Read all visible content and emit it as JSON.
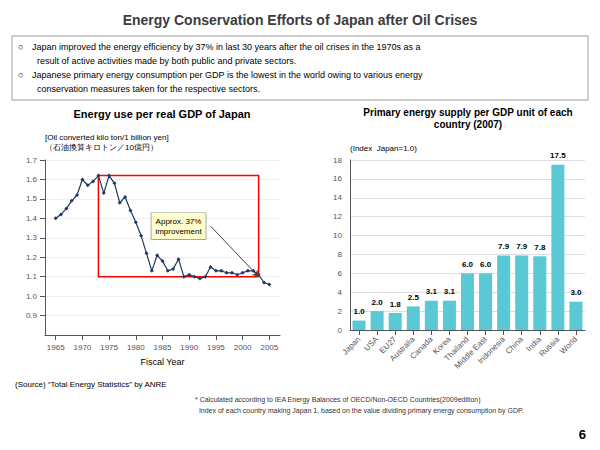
{
  "title": "Energy Conservation Efforts of Japan after Oil Crises",
  "bullet": "○",
  "bullets": [
    [
      "Japan improved the energy efficiency by 37% in last 30 years after the oil crises in the 1970s as a",
      "  result of active activities made by both public and private sectors."
    ],
    [
      "Japanese primary energy consumption per GDP is the lowest in the world owing to various energy",
      "  conservation measures taken for the respective sectors."
    ]
  ],
  "page": "6",
  "chart_data": [
    {
      "type": "line",
      "title": "Energy use per real GDP of Japan",
      "x_label": "Fiscal Year",
      "y_label": "[Oil converted kilo ton/1 billion yen]\n（石油換算キロトン／10億円）",
      "source": "(Source) “Total Energy Statistics” by ANRE",
      "x": [
        1965,
        1966,
        1967,
        1968,
        1969,
        1970,
        1971,
        1972,
        1973,
        1974,
        1975,
        1976,
        1977,
        1978,
        1979,
        1980,
        1981,
        1982,
        1983,
        1984,
        1985,
        1986,
        1987,
        1988,
        1989,
        1990,
        1991,
        1992,
        1993,
        1994,
        1995,
        1996,
        1997,
        1998,
        1999,
        2000,
        2001,
        2002,
        2003,
        2004,
        2005
      ],
      "values": [
        1.4,
        1.42,
        1.45,
        1.49,
        1.52,
        1.6,
        1.57,
        1.59,
        1.62,
        1.53,
        1.62,
        1.58,
        1.48,
        1.51,
        1.44,
        1.38,
        1.31,
        1.22,
        1.13,
        1.21,
        1.18,
        1.13,
        1.14,
        1.19,
        1.1,
        1.11,
        1.1,
        1.09,
        1.1,
        1.15,
        1.13,
        1.13,
        1.12,
        1.12,
        1.11,
        1.12,
        1.13,
        1.13,
        1.11,
        1.07,
        1.06
      ],
      "color": "#1f3864",
      "marker": "diamond",
      "xlim": [
        1963,
        2007
      ],
      "xticks": [
        1965,
        1970,
        1975,
        1980,
        1985,
        1990,
        1995,
        2000,
        2005
      ],
      "ylim": [
        0.8,
        1.7
      ],
      "yticks": [
        0.9,
        {
          "value": 1.0,
          "label": "1.0"
        },
        1.1,
        1.2,
        1.3,
        1.4,
        1.5,
        1.6,
        1.7
      ],
      "grid": true,
      "box": {
        "x": [
          1973,
          2003
        ],
        "y": [
          1.1,
          1.62
        ],
        "color": "red",
        "label": "Approx. 37%\nimprovement"
      }
    },
    {
      "type": "bar",
      "title": "Primary energy supply per GDP unit of each\ncountry (2007)",
      "y_label": "(Index  Japan=1.0)",
      "categories": [
        "Japan",
        "USA",
        "EU27",
        "Australia",
        "Canada",
        "Korea",
        "Thailand",
        "Middle East",
        "Indonesia",
        "China",
        "India",
        "Russia",
        "World"
      ],
      "values": [
        1.0,
        2.0,
        1.8,
        2.5,
        3.1,
        3.1,
        6.0,
        6.0,
        7.9,
        7.9,
        7.8,
        17.5,
        3.0
      ],
      "value_labels": [
        "1.0",
        "2.0",
        "1.8",
        "2.5",
        "3.1",
        "3.1",
        "6.0",
        "6.0",
        "7.9",
        "7.9",
        "7.8",
        "17.5",
        "3.0"
      ],
      "data_labels": true,
      "color": "#5bc8d5",
      "ylim": [
        0,
        18
      ],
      "yticks": [
        0,
        2,
        4,
        6,
        8,
        10,
        12,
        14,
        16,
        18
      ],
      "grid": true,
      "footnotes": [
        "* Calculated according to IEA Energy Balances of OECD/Non-OECD Countries(2009edition)",
        "  Index of each country making Japan 1, based on the value dividing primary energy consumption by GDP."
      ]
    }
  ]
}
